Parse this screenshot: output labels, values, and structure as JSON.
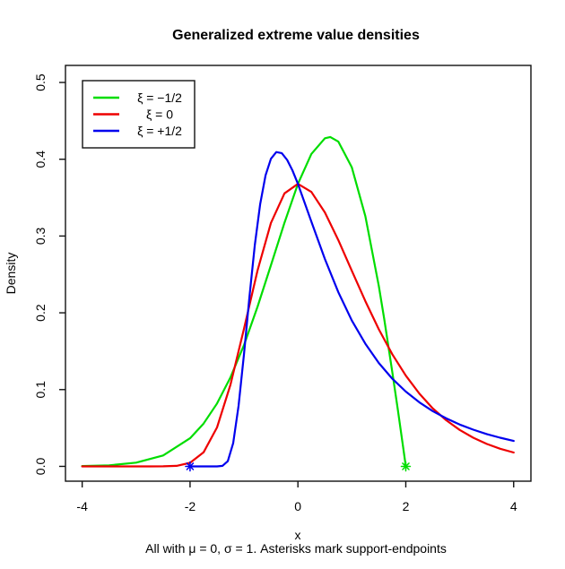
{
  "chart_data": {
    "type": "line",
    "title": "Generalized extreme value densities",
    "xlabel": "x",
    "ylabel": "Density",
    "caption": "All with μ = 0, σ = 1. Asterisks mark support-endpoints",
    "axis": {
      "x_range": [
        -4.31,
        4.32
      ],
      "y_range": [
        -0.0193,
        0.5222
      ],
      "x_ticks": {
        "values": [
          -4,
          -2,
          0,
          2,
          4
        ],
        "labels": [
          "-4",
          "-2",
          "0",
          "2",
          "4"
        ]
      },
      "y_ticks": {
        "values": [
          0,
          0.1,
          0.2,
          0.3,
          0.4,
          0.5
        ],
        "labels": [
          "0.0",
          "0.1",
          "0.2",
          "0.3",
          "0.4",
          "0.5"
        ]
      },
      "grid": false
    },
    "legend": {
      "position": "top-left",
      "entries": [
        {
          "label": "ξ = −1/2",
          "color": "#00DD00"
        },
        {
          "label": "ξ = 0",
          "color": "#EE0000"
        },
        {
          "label": "ξ = +1/2",
          "color": "#0000EE"
        }
      ]
    },
    "series": [
      {
        "name": "xi-neg-half",
        "label": "ξ = −1/2",
        "color": "#00DD00",
        "points": [
          [
            -4,
            0.0004
          ],
          [
            -3.5,
            0.0014
          ],
          [
            -3,
            0.0048
          ],
          [
            -2.5,
            0.0142
          ],
          [
            -2,
            0.0366
          ],
          [
            -1.75,
            0.0557
          ],
          [
            -1.5,
            0.0819
          ],
          [
            -1.25,
            0.116
          ],
          [
            -1,
            0.1581
          ],
          [
            -0.75,
            0.2077
          ],
          [
            -0.5,
            0.262
          ],
          [
            -0.25,
            0.3173
          ],
          [
            0,
            0.3679
          ],
          [
            0.25,
            0.4069
          ],
          [
            0.5,
            0.4273
          ],
          [
            0.6,
            0.4289
          ],
          [
            0.75,
            0.4229
          ],
          [
            1,
            0.3894
          ],
          [
            1.25,
            0.3258
          ],
          [
            1.5,
            0.2349
          ],
          [
            1.6,
            0.1922
          ],
          [
            1.75,
            0.1231
          ],
          [
            1.85,
            0.0746
          ],
          [
            1.95,
            0.025
          ],
          [
            2,
            0
          ]
        ]
      },
      {
        "name": "xi-zero",
        "label": "ξ = 0",
        "color": "#EE0000",
        "points": [
          [
            -4,
            0
          ],
          [
            -3.5,
            0
          ],
          [
            -3,
            0
          ],
          [
            -2.75,
            0
          ],
          [
            -2.5,
            0.0001
          ],
          [
            -2.25,
            0.0007
          ],
          [
            -2,
            0.0046
          ],
          [
            -1.75,
            0.0183
          ],
          [
            -1.5,
            0.0507
          ],
          [
            -1.25,
            0.1064
          ],
          [
            -1,
            0.1794
          ],
          [
            -0.75,
            0.2548
          ],
          [
            -0.5,
            0.317
          ],
          [
            -0.25,
            0.3556
          ],
          [
            0,
            0.3679
          ],
          [
            0.25,
            0.3574
          ],
          [
            0.5,
            0.3307
          ],
          [
            0.75,
            0.2945
          ],
          [
            1,
            0.2547
          ],
          [
            1.25,
            0.2151
          ],
          [
            1.5,
            0.1785
          ],
          [
            1.75,
            0.1461
          ],
          [
            2,
            0.1182
          ],
          [
            2.25,
            0.0949
          ],
          [
            2.5,
            0.0756
          ],
          [
            2.75,
            0.06
          ],
          [
            3,
            0.0474
          ],
          [
            3.25,
            0.0373
          ],
          [
            3.5,
            0.0293
          ],
          [
            3.75,
            0.023
          ],
          [
            4,
            0.018
          ]
        ]
      },
      {
        "name": "xi-pos-half",
        "label": "ξ = +1/2",
        "color": "#0000EE",
        "points": [
          [
            -2,
            0
          ],
          [
            -1.8,
            0
          ],
          [
            -1.6,
            0
          ],
          [
            -1.5,
            0
          ],
          [
            -1.4,
            0.0006
          ],
          [
            -1.3,
            0.0067
          ],
          [
            -1.2,
            0.0302
          ],
          [
            -1.1,
            0.0787
          ],
          [
            -1,
            0.1465
          ],
          [
            -0.9,
            0.2203
          ],
          [
            -0.8,
            0.288
          ],
          [
            -0.7,
            0.3415
          ],
          [
            -0.6,
            0.379
          ],
          [
            -0.5,
            0.4006
          ],
          [
            -0.4,
            0.4094
          ],
          [
            -0.3,
            0.4079
          ],
          [
            -0.2,
            0.3991
          ],
          [
            -0.1,
            0.3852
          ],
          [
            0,
            0.3679
          ],
          [
            0.25,
            0.3187
          ],
          [
            0.5,
            0.27
          ],
          [
            0.75,
            0.2267
          ],
          [
            1,
            0.19
          ],
          [
            1.25,
            0.1597
          ],
          [
            1.5,
            0.1346
          ],
          [
            1.75,
            0.1142
          ],
          [
            2,
            0.0974
          ],
          [
            2.25,
            0.0835
          ],
          [
            2.5,
            0.072
          ],
          [
            2.75,
            0.0625
          ],
          [
            3,
            0.0545
          ],
          [
            3.25,
            0.0478
          ],
          [
            3.5,
            0.0421
          ],
          [
            3.75,
            0.0373
          ],
          [
            4,
            0.0331
          ]
        ]
      }
    ],
    "support_endpoints": [
      {
        "x": -2,
        "y": 0,
        "series": "xi-pos-half",
        "color": "#0000EE"
      },
      {
        "x": 2,
        "y": 0,
        "series": "xi-neg-half",
        "color": "#00DD00"
      }
    ]
  }
}
